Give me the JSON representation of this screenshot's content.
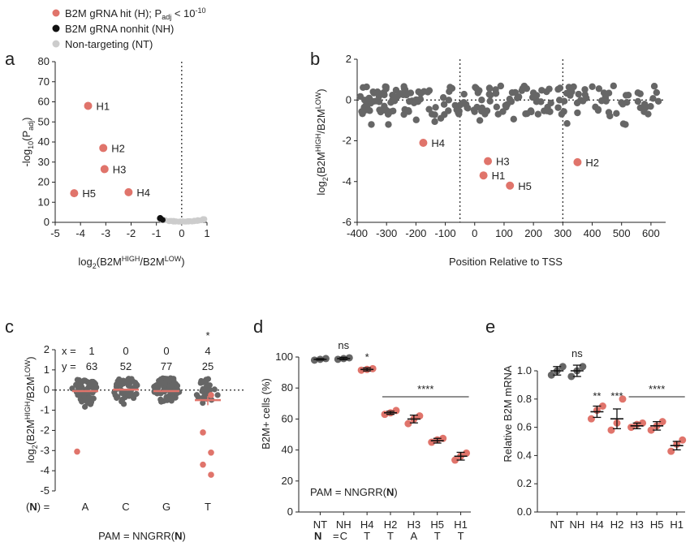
{
  "legend": {
    "items": [
      {
        "label_main": "B2M gRNA hit (H); P",
        "label_sub": "adj",
        "label_mid": " < 10",
        "label_sup": "-10",
        "color": "#e0746b"
      },
      {
        "label_main": "B2M gRNA nonhit (NH)",
        "color": "#111111"
      },
      {
        "label_main": "Non-targeting (NT)",
        "color": "#cccccc"
      }
    ]
  },
  "panel_labels": {
    "a": "a",
    "b": "b",
    "c": "c",
    "d": "d",
    "e": "e"
  },
  "colors": {
    "hit": "#e0746b",
    "nonhit": "#111111",
    "nt": "#cccccc",
    "grey": "#666666",
    "mean": "#e0746b"
  },
  "chart_data": [
    {
      "panel": "a",
      "type": "scatter",
      "xlim": [
        -5,
        1
      ],
      "ylim": [
        0,
        80
      ],
      "xticks": [
        "-5",
        "-4",
        "-3",
        "-2",
        "-1",
        "0",
        "1"
      ],
      "yticks": [
        "0",
        "10",
        "20",
        "30",
        "40",
        "50",
        "60",
        "70",
        "80"
      ],
      "ylabel_parts": {
        "main": "-log",
        "sub": "10",
        "paren": "(P",
        "sub2": "adj",
        "close": ")"
      },
      "xlabel_parts": {
        "main": "log",
        "sub": "2",
        "a": "(B2M",
        "sup1": "HIGH",
        "b": "/B2M",
        "sup2": "LOW",
        "c": ")"
      },
      "vline_x": 0,
      "hits": [
        {
          "name": "H1",
          "x": -3.7,
          "y": 58
        },
        {
          "name": "H2",
          "x": -3.1,
          "y": 37
        },
        {
          "name": "H3",
          "x": -3.05,
          "y": 26.5
        },
        {
          "name": "H4",
          "x": -2.1,
          "y": 15
        },
        {
          "name": "H5",
          "x": -4.25,
          "y": 14.5
        }
      ],
      "nonhit_x": [
        -0.8,
        -0.6,
        -0.4,
        -0.2,
        0.0,
        0.2,
        0.4,
        0.6
      ],
      "nt_x": [
        -0.7,
        -0.5,
        -0.3,
        -0.1,
        0.1,
        0.3,
        0.5,
        0.7,
        0.85,
        0.9
      ]
    },
    {
      "panel": "b",
      "type": "scatter",
      "xlim": [
        -400,
        650
      ],
      "ylim": [
        -6,
        2
      ],
      "xticks": [
        "-400",
        "-300",
        "-200",
        "-100",
        "0",
        "100",
        "200",
        "300",
        "400",
        "500",
        "600"
      ],
      "yticks": [
        "-6",
        "-4",
        "-2",
        "0",
        "2"
      ],
      "ylabel_parts": {
        "main": "log",
        "sub": "2",
        "a": "(B2M",
        "sup1": "HIGH",
        "b": "/B2M",
        "sup2": "LOW",
        "c": ")"
      },
      "xlabel": "Position Relative to TSS",
      "vlines": [
        -50,
        300
      ],
      "hline_y": 0,
      "hits": [
        {
          "name": "H4",
          "x": -175,
          "y": -2.1
        },
        {
          "name": "H3",
          "x": 45,
          "y": -3.0
        },
        {
          "name": "H1",
          "x": 30,
          "y": -3.7
        },
        {
          "name": "H5",
          "x": 120,
          "y": -4.2
        },
        {
          "name": "H2",
          "x": 350,
          "y": -3.05
        }
      ]
    },
    {
      "panel": "c",
      "type": "scatter",
      "ylim": [
        -5,
        2
      ],
      "yticks": [
        "-5",
        "-4",
        "-3",
        "-2",
        "-1",
        "0",
        "1",
        "2"
      ],
      "ylabel_parts": {
        "main": "log",
        "sub": "2",
        "a": "(B2M",
        "sup1": "HIGH",
        "b": "/B2M",
        "sup2": "LOW",
        "c": ")"
      },
      "row_label": "(N) =",
      "row_label_bold": "N",
      "categories": [
        "A",
        "C",
        "G",
        "T"
      ],
      "x_counts": [
        "1",
        "0",
        "0",
        "4"
      ],
      "y_counts": [
        "63",
        "52",
        "77",
        "25"
      ],
      "x_prefix": "x =",
      "y_prefix": "y =",
      "significance": [
        "",
        "",
        "",
        "*"
      ],
      "means": [
        -0.05,
        0.02,
        -0.05,
        -0.5
      ],
      "hit_points": [
        {
          "cat": "A",
          "y": -3.05
        },
        {
          "cat": "T",
          "y": -0.25
        },
        {
          "cat": "T",
          "y": -2.1
        },
        {
          "cat": "T",
          "y": -3.1
        },
        {
          "cat": "T",
          "y": -3.7
        },
        {
          "cat": "T",
          "y": -4.2
        }
      ],
      "xlabel_main": "PAM = NNGRR(",
      "xlabel_bold": "N",
      "xlabel_close": ")"
    },
    {
      "panel": "d",
      "type": "scatter",
      "ylim": [
        0,
        100
      ],
      "yticks": [
        "0",
        "20",
        "40",
        "60",
        "80",
        "100"
      ],
      "ylabel": "B2M+ cells (%)",
      "categories": [
        "NT",
        "NH",
        "H4",
        "H2",
        "H3",
        "H5",
        "H1"
      ],
      "n_row": [
        "C",
        "T",
        "T",
        "A",
        "T",
        "T"
      ],
      "n_row_label": "N",
      "n_row_eq": "=",
      "means": [
        98.5,
        99,
        92,
        64,
        60,
        46,
        36
      ],
      "errors": [
        0.5,
        0.8,
        1.0,
        1.0,
        2.5,
        1.5,
        2.5
      ],
      "points": [
        [
          98,
          98.5,
          99
        ],
        [
          98.5,
          99,
          99.5
        ],
        [
          91.5,
          92,
          92.5
        ],
        [
          63,
          64,
          65.5
        ],
        [
          57,
          60,
          62
        ],
        [
          45,
          46.5,
          47.5
        ],
        [
          33.5,
          36,
          38
        ]
      ],
      "sig_labels": [
        "ns",
        "*",
        "****"
      ],
      "pam_main": "PAM = NNGRR(",
      "pam_bold": "N",
      "pam_close": ")"
    },
    {
      "panel": "e",
      "type": "scatter",
      "ylim": [
        0,
        1.0
      ],
      "yticks": [
        "0.0",
        "0.2",
        "0.4",
        "0.6",
        "0.8",
        "1.0"
      ],
      "ylabel": "Relative B2M mRNA",
      "categories": [
        "NT",
        "NH",
        "H4",
        "H2",
        "H3",
        "H5",
        "H1"
      ],
      "means": [
        1.0,
        1.0,
        0.71,
        0.66,
        0.61,
        0.61,
        0.47
      ],
      "errors": [
        0.03,
        0.04,
        0.04,
        0.07,
        0.02,
        0.03,
        0.03
      ],
      "points": [
        [
          0.97,
          1.0,
          1.03
        ],
        [
          0.96,
          1.0,
          1.03
        ],
        [
          0.66,
          0.72,
          0.75
        ],
        [
          0.58,
          0.63,
          0.8
        ],
        [
          0.6,
          0.62,
          0.63
        ],
        [
          0.58,
          0.61,
          0.64
        ],
        [
          0.43,
          0.48,
          0.51
        ]
      ],
      "sig_labels": [
        "ns",
        "**",
        "***",
        "****"
      ]
    }
  ]
}
